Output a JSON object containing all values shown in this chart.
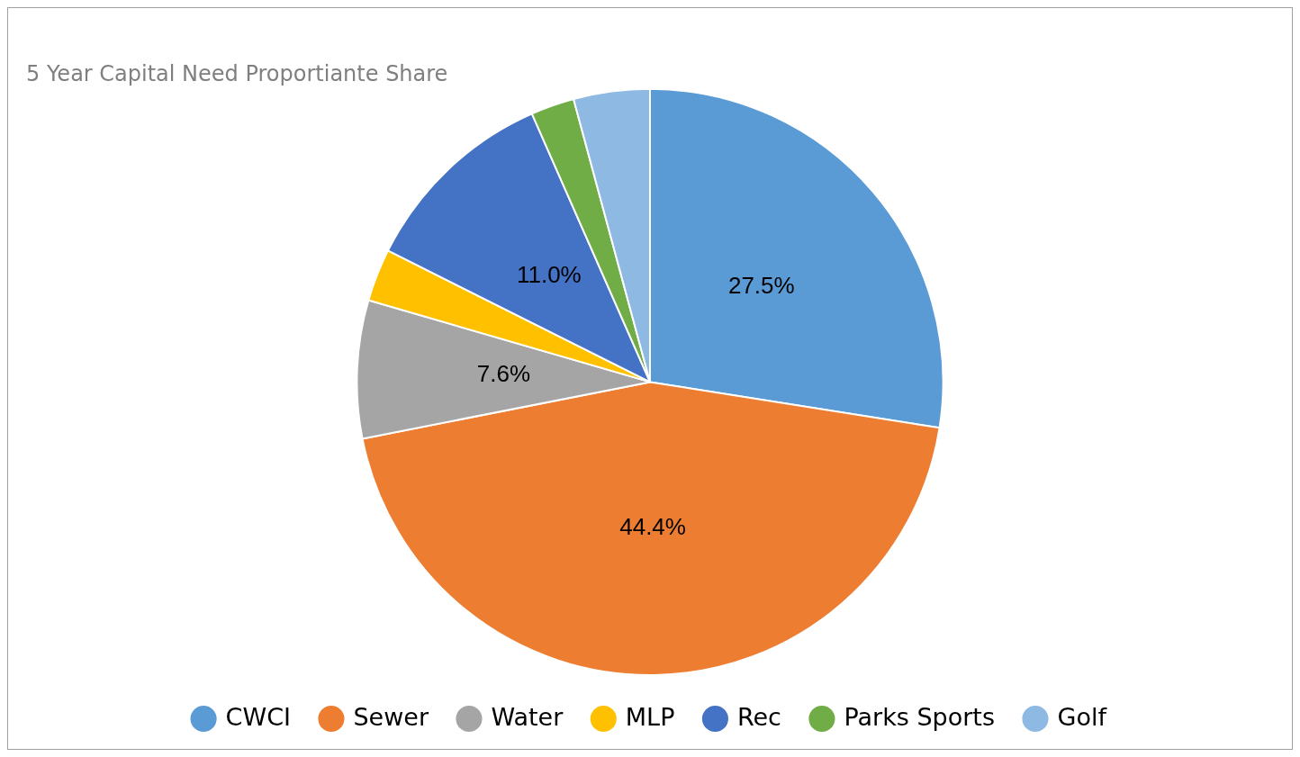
{
  "chart_data": {
    "type": "pie",
    "title": "5 Year Capital Need Proportiante Share",
    "categories": [
      "CWCI",
      "Sewer",
      "Water",
      "MLP",
      "Rec",
      "Parks Sports",
      "Golf"
    ],
    "values": [
      27.5,
      44.4,
      7.6,
      2.9,
      11.0,
      2.4,
      4.2
    ],
    "value_labels": [
      "27.5%",
      "44.4%",
      "7.6%",
      null,
      "11.0%",
      null,
      null
    ],
    "colors": [
      "#5b9bd5",
      "#ed7d31",
      "#a5a5a5",
      "#ffc000",
      "#4472c4",
      "#70ad47",
      "#8db9e2"
    ],
    "legend": "bottom"
  }
}
